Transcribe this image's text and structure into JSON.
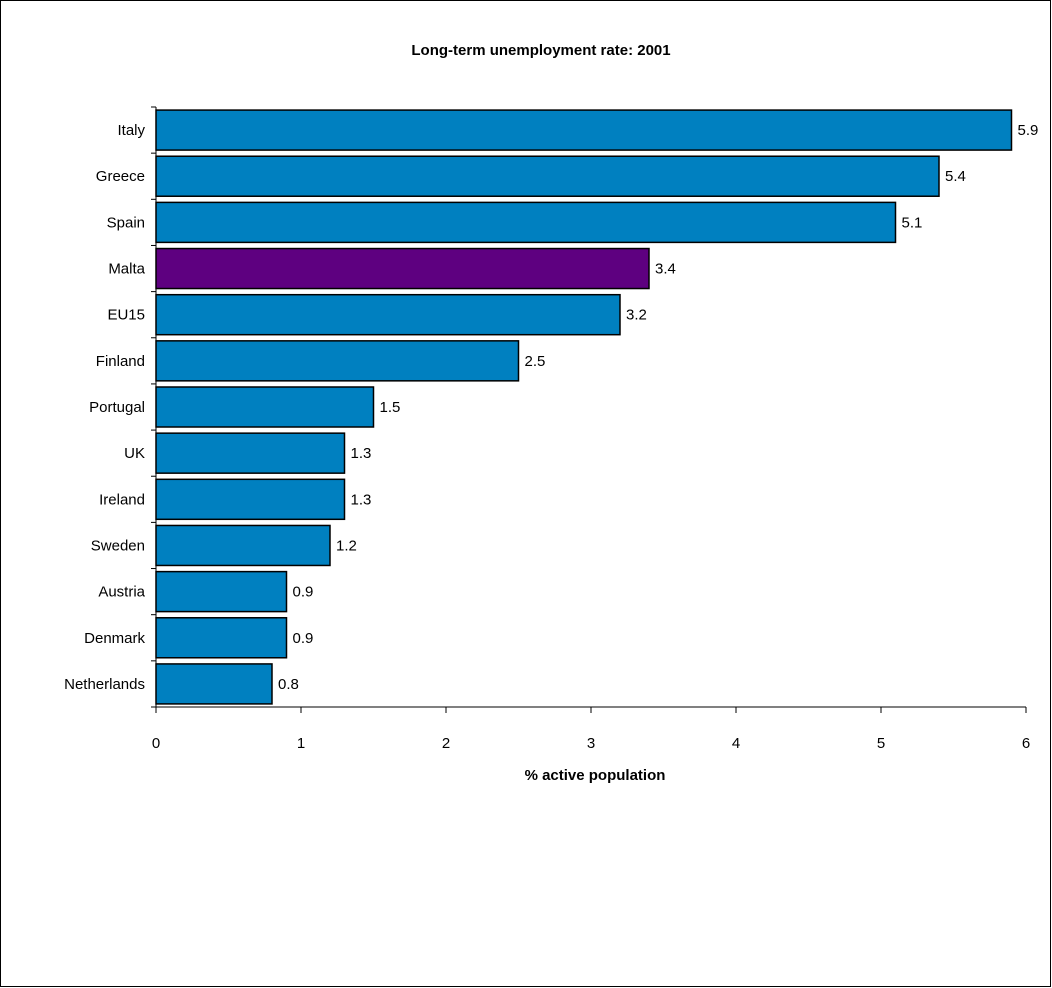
{
  "chart_data": {
    "type": "bar",
    "orientation": "horizontal",
    "title": "Long-term unemployment rate: 2001",
    "xlabel": "% active population",
    "ylabel": "",
    "categories": [
      "Italy",
      "Greece",
      "Spain",
      "Malta",
      "EU15",
      "Finland",
      "Portugal",
      "UK",
      "Ireland",
      "Sweden",
      "Austria",
      "Denmark",
      "Netherlands"
    ],
    "values": [
      5.9,
      5.4,
      5.1,
      3.4,
      3.2,
      2.5,
      1.5,
      1.3,
      1.3,
      1.2,
      0.9,
      0.9,
      0.8
    ],
    "value_labels": [
      "5.9",
      "5.4",
      "5.1",
      "3.4",
      "3.2",
      "2.5",
      "1.5",
      "1.3",
      "1.3",
      "1.2",
      "0.9",
      "0.9",
      "0.8"
    ],
    "xlim": [
      0,
      6
    ],
    "xticks": [
      "0",
      "1",
      "2",
      "3",
      "4",
      "5",
      "6"
    ],
    "grid": false,
    "legend": "none",
    "colors": {
      "default_bar": "#0080C0",
      "highlight_bar": "#5E0080",
      "bar_outline": "#000000"
    },
    "highlight_category": "Malta"
  }
}
